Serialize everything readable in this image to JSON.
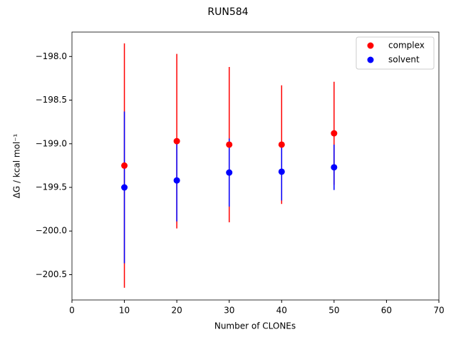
{
  "chart_data": {
    "type": "scatter",
    "title": "RUN584",
    "x_label": "Number of CLONEs",
    "y_label": "ΔG / kcal mol⁻¹",
    "xlim": [
      0,
      70
    ],
    "xticks": [
      0,
      10,
      20,
      30,
      40,
      50,
      60,
      70
    ],
    "ylim": [
      -200.79,
      -197.72
    ],
    "yticks": [
      {
        "value": -198.0,
        "label": "−198.0"
      },
      {
        "value": -198.5,
        "label": "−198.5"
      },
      {
        "value": -199.0,
        "label": "−199.0"
      },
      {
        "value": -199.5,
        "label": "−199.5"
      },
      {
        "value": -200.0,
        "label": "−200.0"
      },
      {
        "value": -200.5,
        "label": "−200.5"
      }
    ],
    "legend": "upper right",
    "series": [
      {
        "name": "complex",
        "color": "#ff0000",
        "x": [
          10,
          20,
          30,
          40,
          50
        ],
        "values": [
          -199.25,
          -198.97,
          -199.01,
          -199.01,
          -198.88
        ],
        "errors": [
          1.4,
          1.0,
          0.89,
          0.68,
          0.59
        ]
      },
      {
        "name": "solvent",
        "color": "#0000ff",
        "x": [
          10,
          20,
          30,
          40,
          50
        ],
        "values": [
          -199.5,
          -199.42,
          -199.33,
          -199.32,
          -199.27
        ],
        "errors": [
          0.87,
          0.47,
          0.39,
          0.33,
          0.26
        ]
      }
    ]
  }
}
